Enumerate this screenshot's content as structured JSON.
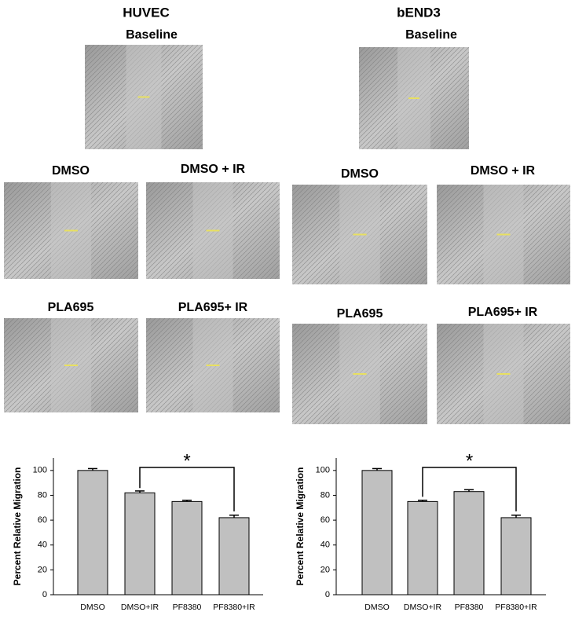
{
  "panels": [
    {
      "title": "HUVEC",
      "images": [
        "Baseline",
        "DMSO",
        "DMSO + IR",
        "PLA695",
        "PLA695+ IR"
      ]
    },
    {
      "title": "bEND3",
      "images": [
        "Baseline",
        "DMSO",
        "DMSO + IR",
        "PLA695",
        "PLA695+ IR"
      ]
    }
  ],
  "chart_data": [
    {
      "type": "bar",
      "y_label": "Percent Relative Migration",
      "categories": [
        "DMSO",
        "DMSO+IR",
        "PF8380",
        "PF8380+IR"
      ],
      "values": [
        100,
        82,
        75,
        62
      ],
      "errors": [
        1.5,
        1.5,
        1,
        2
      ],
      "color": "#c0c0c0",
      "ylim": [
        0,
        110
      ],
      "yticks": [
        0,
        20,
        40,
        60,
        80,
        100
      ],
      "annotation": "*"
    },
    {
      "type": "bar",
      "y_label": "Percent Relative Migration",
      "categories": [
        "DMSO",
        "DMSO+IR",
        "PF8380",
        "PF8380+IR"
      ],
      "values": [
        100,
        75,
        83,
        62
      ],
      "errors": [
        1.5,
        1,
        1.5,
        2
      ],
      "color": "#c0c0c0",
      "ylim": [
        0,
        110
      ],
      "yticks": [
        0,
        20,
        40,
        60,
        80,
        100
      ],
      "annotation": "*"
    }
  ]
}
